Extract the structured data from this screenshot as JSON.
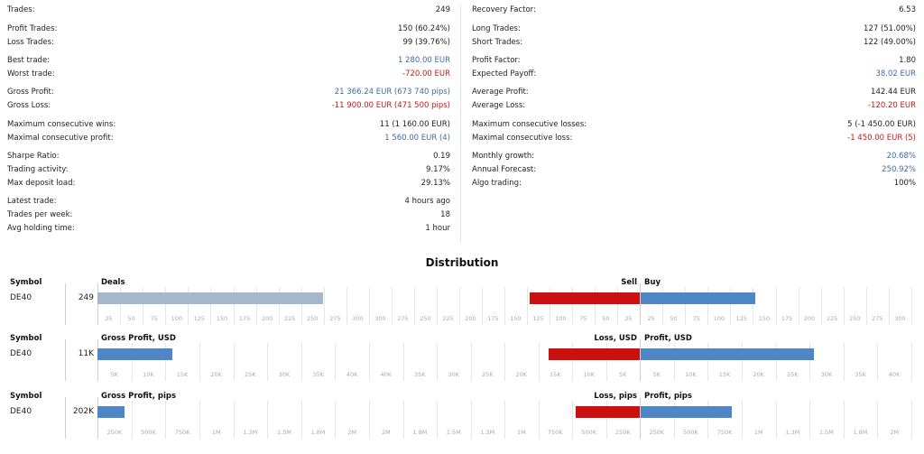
{
  "stats": {
    "left": [
      {
        "label": "Trades:",
        "value": "249",
        "color": ""
      },
      {
        "label": "Profit Trades:",
        "value": "150 (60.24%)",
        "color": ""
      },
      {
        "label": "Loss Trades:",
        "value": "99 (39.76%)",
        "color": ""
      },
      {
        "label": "Best trade:",
        "value": "1 280.00 EUR",
        "color": "blue"
      },
      {
        "label": "Worst trade:",
        "value": "-720.00 EUR",
        "color": "red"
      },
      {
        "label": "Gross Profit:",
        "value": "21 366.24 EUR (673 740 pips)",
        "color": "blue"
      },
      {
        "label": "Gross Loss:",
        "value": "-11 900.00 EUR (471 500 pips)",
        "color": "red"
      },
      {
        "label": "Maximum consecutive wins:",
        "value": "11 (1 160.00 EUR)",
        "color": ""
      },
      {
        "label": "Maximal consecutive profit:",
        "value": "1 560.00 EUR (4)",
        "color": "blue"
      },
      {
        "label": "Sharpe Ratio:",
        "value": "0.19",
        "color": ""
      },
      {
        "label": "Trading activity:",
        "value": "9.17%",
        "color": ""
      },
      {
        "label": "Max deposit load:",
        "value": "29.13%",
        "color": ""
      },
      {
        "label": "Latest trade:",
        "value": "4 hours ago",
        "color": ""
      },
      {
        "label": "Trades per week:",
        "value": "18",
        "color": ""
      },
      {
        "label": "Avg holding time:",
        "value": "1 hour",
        "color": ""
      }
    ],
    "right": [
      {
        "label": "Recovery Factor:",
        "value": "6.53",
        "color": ""
      },
      {
        "label": "Long Trades:",
        "value": "127 (51.00%)",
        "color": ""
      },
      {
        "label": "Short Trades:",
        "value": "122 (49.00%)",
        "color": ""
      },
      {
        "label": "Profit Factor:",
        "value": "1.80",
        "color": ""
      },
      {
        "label": "Expected Payoff:",
        "value": "38.02 EUR",
        "color": "blue"
      },
      {
        "label": "Average Profit:",
        "value": "142.44 EUR",
        "color": ""
      },
      {
        "label": "Average Loss:",
        "value": "-120.20 EUR",
        "color": "red"
      },
      {
        "label": "Maximum consecutive losses:",
        "value": "5 (-1 450.00 EUR)",
        "color": ""
      },
      {
        "label": "Maximal consecutive loss:",
        "value": "-1 450.00 EUR (5)",
        "color": "red"
      },
      {
        "label": "Monthly growth:",
        "value": "20.68%",
        "color": "blue"
      },
      {
        "label": "Annual Forecast:",
        "value": "250.92%",
        "color": "blue"
      },
      {
        "label": "Algo trading:",
        "value": "100%",
        "color": ""
      }
    ]
  },
  "distribution": {
    "title": "Distribution",
    "colors": {
      "deals": "#a8b6cc",
      "profit": "#4f86c6",
      "loss": "#cc1010"
    },
    "sections": [
      {
        "symbol_header": "Symbol",
        "symbol": "DE40",
        "total_label": "249",
        "left_header": "Deals",
        "left_value": 249,
        "left_max": 300,
        "left_ticks": [
          "25",
          "50",
          "75",
          "100",
          "125",
          "150",
          "175",
          "200",
          "225",
          "250",
          "275",
          "300"
        ],
        "mid_ticks": [
          "300",
          "275",
          "250",
          "225",
          "200",
          "175",
          "150",
          "125",
          "100",
          "75",
          "50",
          "25"
        ],
        "mid_max": 300,
        "neg_header": "Sell",
        "neg_value": 122,
        "pos_header": "Buy",
        "pos_value": 127,
        "pos_max": 300,
        "right_ticks": [
          "25",
          "50",
          "75",
          "100",
          "125",
          "150",
          "175",
          "200",
          "225",
          "250",
          "275",
          "300"
        ]
      },
      {
        "symbol_header": "Symbol",
        "symbol": "DE40",
        "total_label": "11K",
        "left_header": "Gross Profit, USD",
        "left_value": 11000,
        "left_max": 40000,
        "left_ticks": [
          "5K",
          "10K",
          "15K",
          "20K",
          "25K",
          "30K",
          "35K",
          "40K"
        ],
        "mid_ticks": [
          "40K",
          "35K",
          "30K",
          "25K",
          "20K",
          "15K",
          "10K",
          "5K"
        ],
        "mid_max": 40000,
        "neg_header": "Loss, USD",
        "neg_value": 13500,
        "pos_header": "Profit, USD",
        "pos_value": 25500,
        "pos_max": 40000,
        "right_ticks": [
          "5K",
          "10K",
          "15K",
          "20K",
          "25K",
          "30K",
          "35K",
          "40K"
        ]
      },
      {
        "symbol_header": "Symbol",
        "symbol": "DE40",
        "total_label": "202K",
        "left_header": "Gross Profit, pips",
        "left_value": 202000,
        "left_max": 2000000,
        "left_ticks": [
          "250K",
          "500K",
          "750K",
          "1M",
          "1.3M",
          "1.5M",
          "1.8M",
          "2M"
        ],
        "mid_ticks": [
          "2M",
          "1.8M",
          "1.5M",
          "1.3M",
          "1M",
          "750K",
          "500K",
          "250K"
        ],
        "mid_max": 2000000,
        "neg_header": "Loss, pips",
        "neg_value": 471500,
        "pos_header": "Profit, pips",
        "pos_value": 673740,
        "pos_max": 2000000,
        "right_ticks": [
          "250K",
          "500K",
          "750K",
          "1M",
          "1.3M",
          "1.5M",
          "1.8M",
          "2M"
        ]
      }
    ]
  }
}
